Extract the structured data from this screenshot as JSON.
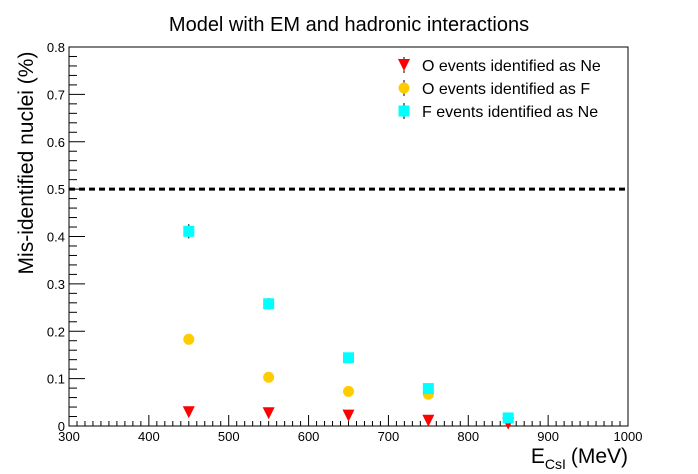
{
  "chart_data": {
    "type": "scatter",
    "title": "Model with EM and hadronic interactions",
    "xlabel": "E",
    "xlabel_sub": "CsI",
    "xlabel_unit": "(MeV)",
    "ylabel": "Mis-identified nuclei (%)",
    "xlim": [
      300,
      1000
    ],
    "ylim": [
      0,
      0.8
    ],
    "x_ticks": [
      "300",
      "400",
      "500",
      "600",
      "700",
      "800",
      "900",
      "1000"
    ],
    "y_ticks": [
      "0",
      "0.1",
      "0.2",
      "0.3",
      "0.4",
      "0.5",
      "0.6",
      "0.7",
      "0.8"
    ],
    "threshold": 0.5,
    "legend_position": "top-right",
    "grid": false,
    "series": [
      {
        "name": "O events identified as Ne",
        "marker": "triangle-down",
        "color": "#ff0000",
        "x": [
          450,
          550,
          650,
          750,
          850
        ],
        "y": [
          0.029,
          0.027,
          0.022,
          0.011,
          0.005
        ],
        "err": [
          0.003,
          0.003,
          0.003,
          0.002,
          0.002
        ]
      },
      {
        "name": "O events identified as F",
        "marker": "circle",
        "color": "#ffcc00",
        "x": [
          450,
          550,
          650,
          750
        ],
        "y": [
          0.183,
          0.103,
          0.073,
          0.067
        ],
        "err": [
          0.01,
          0.006,
          0.005,
          0.005
        ]
      },
      {
        "name": "F events identified as Ne",
        "marker": "square",
        "color": "#00ffff",
        "x": [
          450,
          550,
          650,
          750,
          850
        ],
        "y": [
          0.411,
          0.258,
          0.144,
          0.079,
          0.017
        ],
        "err": [
          0.015,
          0.012,
          0.007,
          0.006,
          0.004
        ]
      }
    ]
  }
}
